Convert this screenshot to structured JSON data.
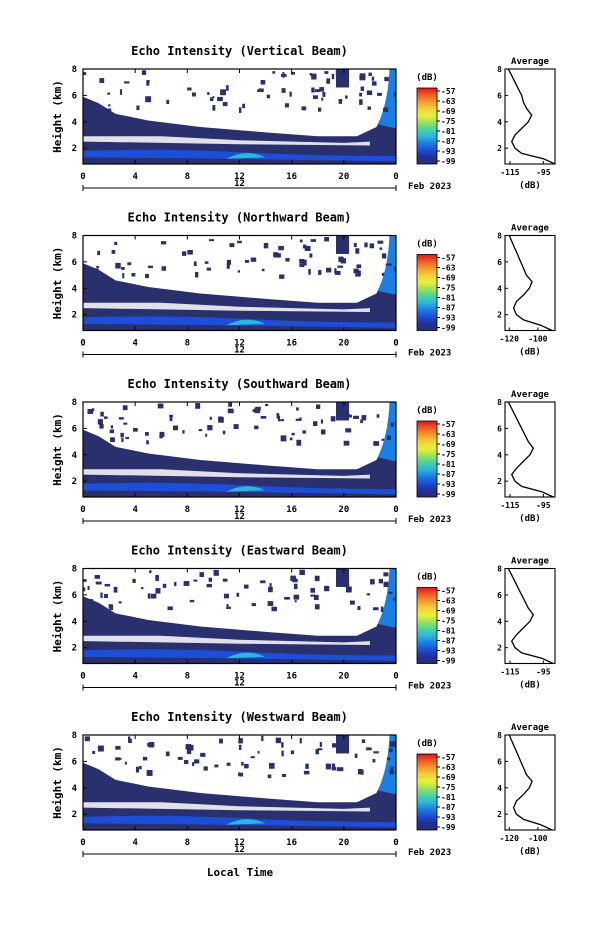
{
  "figure": {
    "xlabel": "Local Time",
    "date_label": "Feb 2023",
    "colorbar_unit": "(dB)",
    "colorbar_ticks": [
      "-57",
      "-63",
      "-69",
      "-75",
      "-81",
      "-87",
      "-93",
      "-99"
    ],
    "colorbar_colors": [
      "#d7191c",
      "#f05a28",
      "#f59a2c",
      "#f4d03a",
      "#e8f03a",
      "#9de05a",
      "#4cd39a",
      "#2bb8d8",
      "#1a7fe0",
      "#1d4ed8",
      "#202f9a",
      "#2a2f6e"
    ],
    "avg_title": "Average",
    "avg_xlabel": "(dB)"
  },
  "chart_data": [
    {
      "type": "heatmap",
      "title": "Echo Intensity (Vertical Beam)",
      "ylabel": "Height (km)",
      "xlabel": "",
      "x_ticks": [
        "0",
        "4",
        "8",
        "12",
        "16",
        "20",
        "0"
      ],
      "x_sub_label": "12",
      "xlim": [
        0,
        24
      ],
      "y_ticks": [
        "2",
        "4",
        "6",
        "8"
      ],
      "ylim": [
        0.8,
        8
      ],
      "avg": {
        "x_ticks": [
          "-115",
          "-95"
        ],
        "xlim": [
          -118,
          -88
        ],
        "y": [
          0.8,
          1.2,
          1.6,
          2.0,
          2.5,
          3.0,
          3.5,
          4.0,
          4.5,
          5.0,
          5.5,
          6.0,
          6.5,
          7.0,
          7.5,
          8.0
        ],
        "x": [
          -88,
          -95,
          -108,
          -112,
          -114,
          -112,
          -108,
          -104,
          -102,
          -105,
          -107,
          -108,
          -110,
          -112,
          -114,
          -116
        ]
      }
    },
    {
      "type": "heatmap",
      "title": "Echo Intensity (Northward Beam)",
      "ylabel": "Height (km)",
      "xlabel": "",
      "x_ticks": [
        "0",
        "4",
        "8",
        "12",
        "16",
        "20",
        "0"
      ],
      "x_sub_label": "12",
      "xlim": [
        0,
        24
      ],
      "y_ticks": [
        "2",
        "4",
        "6",
        "8"
      ],
      "ylim": [
        0.8,
        8
      ],
      "avg": {
        "x_ticks": [
          "-120",
          "-100"
        ],
        "xlim": [
          -123,
          -88
        ],
        "y": [
          0.8,
          1.2,
          1.6,
          2.0,
          2.5,
          3.0,
          3.5,
          4.0,
          4.5,
          5.0,
          5.5,
          6.0,
          6.5,
          7.0,
          7.5,
          8.0
        ],
        "x": [
          -90,
          -98,
          -110,
          -115,
          -117,
          -115,
          -110,
          -106,
          -104,
          -108,
          -110,
          -112,
          -114,
          -116,
          -118,
          -120
        ]
      }
    },
    {
      "type": "heatmap",
      "title": "Echo Intensity (Southward Beam)",
      "ylabel": "Height (km)",
      "xlabel": "",
      "x_ticks": [
        "0",
        "4",
        "8",
        "12",
        "16",
        "20",
        "0"
      ],
      "x_sub_label": "12",
      "xlim": [
        0,
        24
      ],
      "y_ticks": [
        "2",
        "4",
        "6",
        "8"
      ],
      "ylim": [
        0.8,
        8
      ],
      "avg": {
        "x_ticks": [
          "-115",
          "-95"
        ],
        "xlim": [
          -118,
          -88
        ],
        "y": [
          0.8,
          1.2,
          1.6,
          2.0,
          2.5,
          3.0,
          3.5,
          4.0,
          4.5,
          5.0,
          5.5,
          6.0,
          6.5,
          7.0,
          7.5,
          8.0
        ],
        "x": [
          -89,
          -96,
          -108,
          -112,
          -114,
          -111,
          -107,
          -103,
          -101,
          -104,
          -106,
          -108,
          -110,
          -112,
          -114,
          -116
        ]
      }
    },
    {
      "type": "heatmap",
      "title": "Echo Intensity (Eastward Beam)",
      "ylabel": "Height (km)",
      "xlabel": "",
      "x_ticks": [
        "0",
        "4",
        "8",
        "12",
        "16",
        "20",
        "0"
      ],
      "x_sub_label": "12",
      "xlim": [
        0,
        24
      ],
      "y_ticks": [
        "2",
        "4",
        "6",
        "8"
      ],
      "ylim": [
        0.8,
        8
      ],
      "avg": {
        "x_ticks": [
          "-115",
          "-95"
        ],
        "xlim": [
          -118,
          -88
        ],
        "y": [
          0.8,
          1.2,
          1.6,
          2.0,
          2.5,
          3.0,
          3.5,
          4.0,
          4.5,
          5.0,
          5.5,
          6.0,
          6.5,
          7.0,
          7.5,
          8.0
        ],
        "x": [
          -89,
          -96,
          -108,
          -112,
          -114,
          -111,
          -107,
          -103,
          -101,
          -104,
          -106,
          -108,
          -110,
          -112,
          -114,
          -116
        ]
      }
    },
    {
      "type": "heatmap",
      "title": "Echo Intensity (Westward Beam)",
      "ylabel": "Height (km)",
      "xlabel": "Local Time",
      "x_ticks": [
        "0",
        "4",
        "8",
        "12",
        "16",
        "20",
        "0"
      ],
      "x_sub_label": "12",
      "xlim": [
        0,
        24
      ],
      "y_ticks": [
        "2",
        "4",
        "6",
        "8"
      ],
      "ylim": [
        0.8,
        8
      ],
      "avg": {
        "x_ticks": [
          "-120",
          "-100"
        ],
        "xlim": [
          -123,
          -88
        ],
        "y": [
          0.8,
          1.2,
          1.6,
          2.0,
          2.5,
          3.0,
          3.5,
          4.0,
          4.5,
          5.0,
          5.5,
          6.0,
          6.5,
          7.0,
          7.5,
          8.0
        ],
        "x": [
          -90,
          -98,
          -110,
          -115,
          -117,
          -115,
          -110,
          -106,
          -104,
          -108,
          -110,
          -112,
          -114,
          -116,
          -118,
          -120
        ]
      }
    }
  ]
}
